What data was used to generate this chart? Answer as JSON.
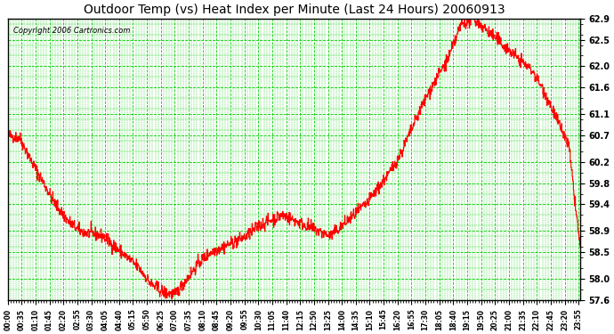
{
  "title": "Outdoor Temp (vs) Heat Index per Minute (Last 24 Hours) 20060913",
  "copyright": "Copyright 2006 Cartronics.com",
  "line_color": "#ff0000",
  "bg_color": "#ffffff",
  "grid_color": "#00cc00",
  "ylim": [
    57.6,
    62.9
  ],
  "yticks": [
    57.6,
    58.0,
    58.5,
    58.9,
    59.4,
    59.8,
    60.2,
    60.7,
    61.1,
    61.6,
    62.0,
    62.5,
    62.9
  ],
  "xtick_labels": [
    "00:00",
    "00:35",
    "01:10",
    "01:45",
    "02:20",
    "02:55",
    "03:30",
    "04:05",
    "04:40",
    "05:15",
    "05:50",
    "06:25",
    "07:00",
    "07:35",
    "08:10",
    "08:45",
    "09:20",
    "09:55",
    "10:30",
    "11:05",
    "11:40",
    "12:15",
    "12:50",
    "13:25",
    "14:00",
    "14:35",
    "15:10",
    "15:45",
    "16:20",
    "16:55",
    "17:30",
    "18:05",
    "18:40",
    "19:15",
    "19:50",
    "20:25",
    "21:00",
    "21:35",
    "22:10",
    "22:45",
    "23:20",
    "23:55"
  ],
  "xtick_positions": [
    0,
    35,
    70,
    105,
    140,
    175,
    210,
    245,
    280,
    315,
    350,
    385,
    420,
    455,
    490,
    525,
    560,
    595,
    630,
    665,
    700,
    735,
    770,
    805,
    840,
    875,
    910,
    945,
    980,
    1015,
    1050,
    1085,
    1120,
    1155,
    1190,
    1225,
    1260,
    1295,
    1330,
    1365,
    1400,
    1435
  ],
  "waypoints_x": [
    0,
    30,
    60,
    90,
    120,
    150,
    180,
    210,
    240,
    270,
    300,
    330,
    360,
    390,
    420,
    450,
    480,
    510,
    540,
    570,
    600,
    630,
    660,
    690,
    720,
    750,
    780,
    810,
    840,
    870,
    900,
    930,
    960,
    990,
    1020,
    1050,
    1080,
    1110,
    1140,
    1170,
    1200,
    1230,
    1260,
    1290,
    1320,
    1350,
    1380,
    1410,
    1439
  ],
  "waypoints_y": [
    60.7,
    60.65,
    60.2,
    59.8,
    59.4,
    59.1,
    58.9,
    58.85,
    58.8,
    58.6,
    58.4,
    58.2,
    57.9,
    57.75,
    57.7,
    58.0,
    58.3,
    58.5,
    58.6,
    58.7,
    58.8,
    59.0,
    59.1,
    59.2,
    59.1,
    59.0,
    58.9,
    58.8,
    59.0,
    59.2,
    59.4,
    59.7,
    60.0,
    60.4,
    60.9,
    61.4,
    61.8,
    62.2,
    62.8,
    62.9,
    62.7,
    62.5,
    62.3,
    62.1,
    61.9,
    61.5,
    61.0,
    60.5,
    58.55
  ]
}
